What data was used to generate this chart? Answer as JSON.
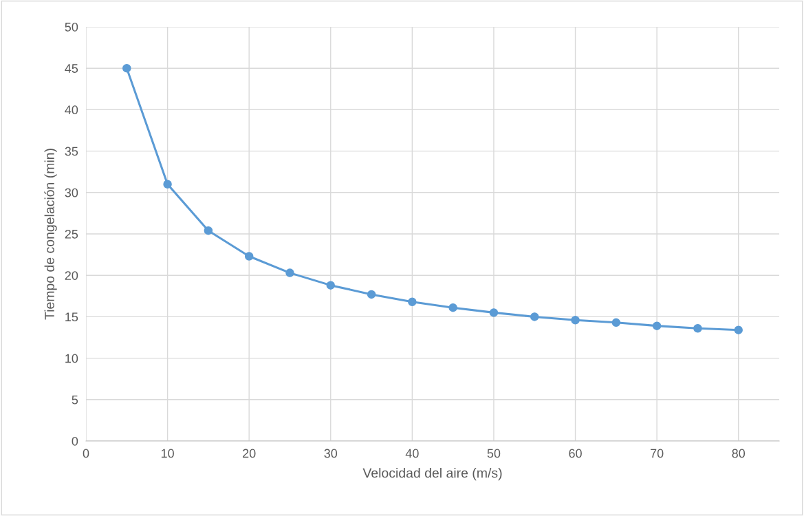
{
  "chart_data": {
    "type": "line",
    "xlabel": "Velocidad del aire (m/s)",
    "ylabel": "Tiempo de congelación (min)",
    "x": [
      5,
      10,
      15,
      20,
      25,
      30,
      35,
      40,
      45,
      50,
      55,
      60,
      65,
      70,
      75,
      80
    ],
    "series": [
      {
        "color": "#5b9bd5",
        "values": [
          45.0,
          31.0,
          25.4,
          22.3,
          20.3,
          18.8,
          17.7,
          16.8,
          16.1,
          15.5,
          15.0,
          14.6,
          14.3,
          13.9,
          13.6,
          13.4
        ]
      }
    ],
    "xlim": [
      0,
      85
    ],
    "xticks": [
      0,
      10,
      20,
      30,
      40,
      50,
      60,
      70,
      80
    ],
    "ylim": [
      0,
      50
    ],
    "yticks": [
      0,
      5,
      10,
      15,
      20,
      25,
      30,
      35,
      40,
      45,
      50
    ],
    "grid": true,
    "marker": "circle",
    "line_style": "solid"
  }
}
